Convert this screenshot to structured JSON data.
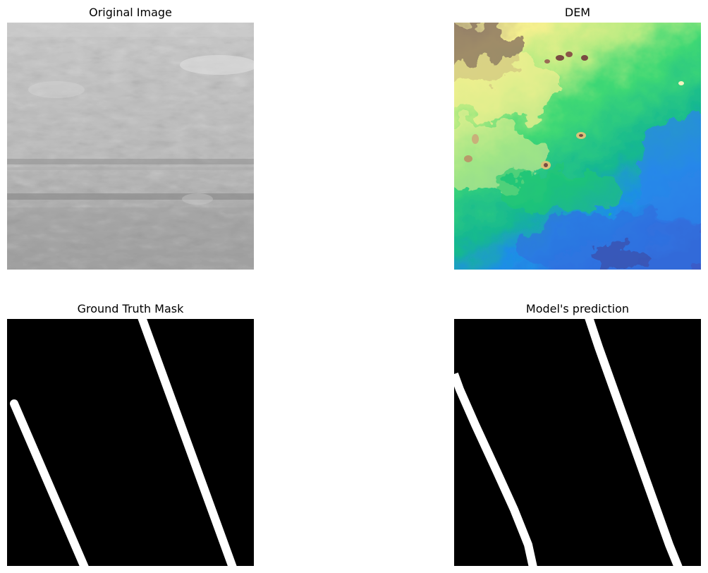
{
  "panels": [
    {
      "title": "Original Image"
    },
    {
      "title": "DEM"
    },
    {
      "title": "Ground Truth Mask"
    },
    {
      "title": "Model's prediction"
    }
  ]
}
